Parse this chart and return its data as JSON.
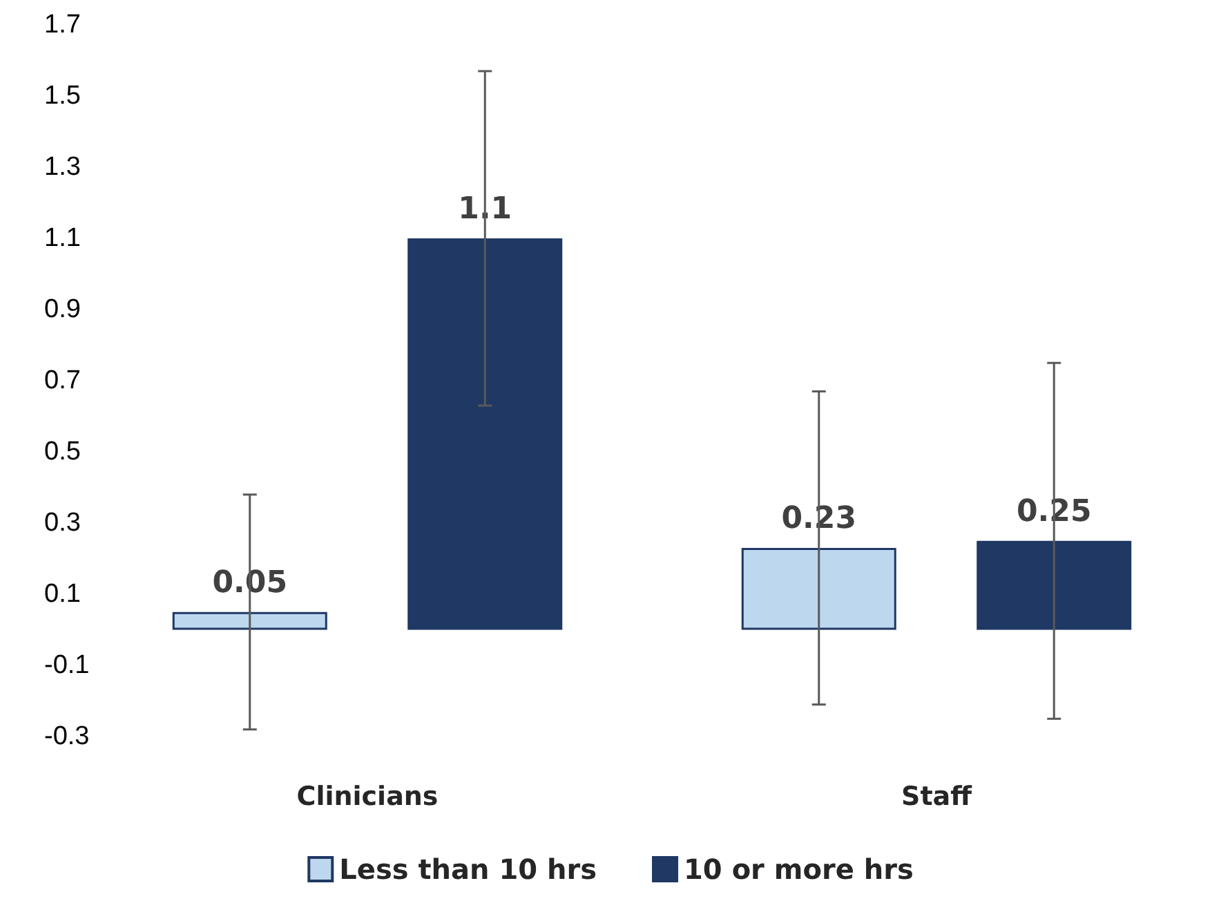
{
  "chart_data": {
    "type": "bar",
    "categories": [
      "Clinicians",
      "Staff"
    ],
    "series": [
      {
        "name": "Less than 10 hrs",
        "color": "#bdd7ee",
        "values": [
          0.05,
          0.23
        ],
        "errors": [
          [
            -0.28,
            0.38
          ],
          [
            -0.21,
            0.67
          ]
        ]
      },
      {
        "name": "10 or more hrs",
        "color": "#1f3864",
        "values": [
          1.1,
          0.25
        ],
        "errors": [
          [
            0.63,
            1.57
          ],
          [
            -0.25,
            0.75
          ]
        ]
      }
    ],
    "ylim": [
      -0.3,
      1.7
    ],
    "yticks": [
      -0.3,
      -0.1,
      0.1,
      0.3,
      0.5,
      0.7,
      0.9,
      1.1,
      1.3,
      1.5,
      1.7
    ],
    "grid": false,
    "legend": "bottom",
    "data_labels": true
  }
}
